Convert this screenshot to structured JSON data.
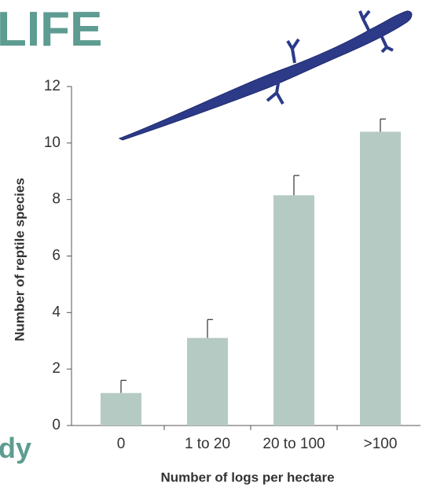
{
  "page_text": {
    "heading": "LIFE",
    "footer": "dy"
  },
  "chart_data": {
    "type": "bar",
    "categories": [
      "0",
      "1 to 20",
      "20 to 100",
      ">100"
    ],
    "values": [
      1.15,
      3.1,
      8.15,
      10.4
    ],
    "errors": [
      0.45,
      0.65,
      0.7,
      0.45
    ],
    "color": "#b5cac3",
    "x_label": "Number of logs per hectare",
    "y_label": "Number of reptile species",
    "ylim": [
      0,
      12
    ],
    "yticks": [
      0,
      2,
      4,
      6,
      8,
      10,
      12
    ]
  }
}
